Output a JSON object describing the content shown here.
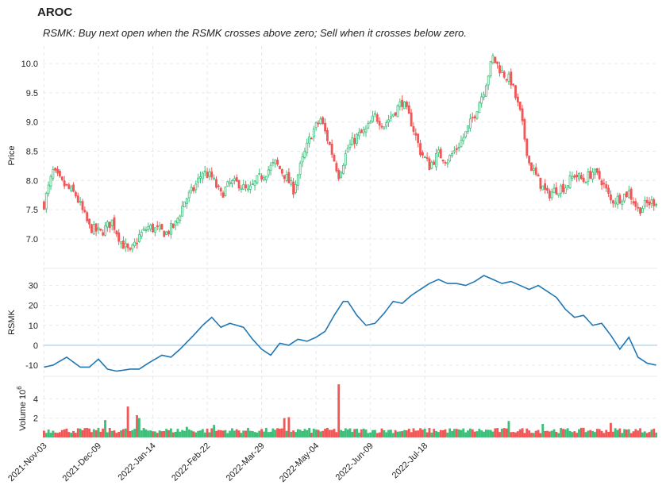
{
  "title": "AROC",
  "subtitle": "RSMK: Buy next open when the RSMK crosses above zero; Sell when it crosses below zero.",
  "colors": {
    "up": "#3dbf7a",
    "down": "#f25757",
    "rsmk": "#2077b4",
    "grid": "#e6e9ee",
    "zero": "#c9e1ee"
  },
  "chart_data": [
    {
      "type": "candlestick",
      "name": "price-panel",
      "ylabel": "Price",
      "ylim": [
        6.55,
        10.3
      ],
      "yticks": [
        7.0,
        7.5,
        8.0,
        8.5,
        9.0,
        9.5,
        10.0
      ],
      "anchors": [
        [
          0,
          7.6
        ],
        [
          4,
          8.15
        ],
        [
          8,
          7.95
        ],
        [
          14,
          7.75
        ],
        [
          20,
          7.2
        ],
        [
          25,
          7.1
        ],
        [
          30,
          7.3
        ],
        [
          34,
          6.95
        ],
        [
          38,
          6.75
        ],
        [
          42,
          7.05
        ],
        [
          46,
          7.2
        ],
        [
          50,
          7.15
        ],
        [
          54,
          7.1
        ],
        [
          58,
          7.25
        ],
        [
          62,
          7.65
        ],
        [
          66,
          7.85
        ],
        [
          70,
          8.15
        ],
        [
          74,
          8.05
        ],
        [
          78,
          7.75
        ],
        [
          82,
          7.95
        ],
        [
          86,
          7.95
        ],
        [
          90,
          7.8
        ],
        [
          94,
          8.0
        ],
        [
          98,
          8.15
        ],
        [
          102,
          8.3
        ],
        [
          106,
          8.1
        ],
        [
          110,
          7.85
        ],
        [
          114,
          8.35
        ],
        [
          118,
          8.8
        ],
        [
          122,
          9.05
        ],
        [
          126,
          8.6
        ],
        [
          130,
          8.1
        ],
        [
          134,
          8.55
        ],
        [
          138,
          8.75
        ],
        [
          142,
          8.85
        ],
        [
          146,
          9.1
        ],
        [
          150,
          8.95
        ],
        [
          154,
          9.15
        ],
        [
          158,
          9.35
        ],
        [
          162,
          9.0
        ],
        [
          166,
          8.5
        ],
        [
          170,
          8.25
        ],
        [
          174,
          8.45
        ],
        [
          178,
          8.35
        ],
        [
          182,
          8.55
        ],
        [
          186,
          8.8
        ],
        [
          190,
          9.15
        ],
        [
          194,
          9.55
        ],
        [
          198,
          10.1
        ],
        [
          202,
          9.85
        ],
        [
          206,
          9.7
        ],
        [
          210,
          9.15
        ],
        [
          214,
          8.3
        ],
        [
          218,
          8.0
        ],
        [
          222,
          7.75
        ],
        [
          226,
          7.85
        ],
        [
          230,
          7.9
        ],
        [
          234,
          8.1
        ],
        [
          238,
          8.0
        ],
        [
          242,
          8.15
        ],
        [
          246,
          8.0
        ],
        [
          250,
          7.65
        ],
        [
          254,
          7.7
        ],
        [
          258,
          7.8
        ],
        [
          262,
          7.5
        ],
        [
          266,
          7.6
        ],
        [
          270,
          7.65
        ]
      ],
      "dates": [
        "2021-Nov-03",
        "2021-Dec-09",
        "2022-Jan-14",
        "2022-Feb-22",
        "2022-Mar-29",
        "2022-May-04",
        "2022-Jun-09",
        "2022-Jul-18"
      ],
      "date_index": [
        0,
        24,
        48,
        72,
        96,
        120,
        144,
        168
      ],
      "n_bars": 271
    },
    {
      "type": "line",
      "name": "rsmk-panel",
      "ylabel": "RSMK",
      "ylim": [
        -14,
        37
      ],
      "yticks": [
        -10,
        0,
        10,
        20,
        30
      ],
      "anchors": [
        [
          0,
          -11
        ],
        [
          4,
          -10
        ],
        [
          10,
          -6
        ],
        [
          16,
          -11
        ],
        [
          20,
          -11
        ],
        [
          24,
          -7
        ],
        [
          28,
          -12
        ],
        [
          32,
          -13
        ],
        [
          38,
          -12
        ],
        [
          42,
          -12
        ],
        [
          46,
          -9
        ],
        [
          52,
          -5
        ],
        [
          56,
          -6
        ],
        [
          60,
          -2
        ],
        [
          66,
          5
        ],
        [
          70,
          10
        ],
        [
          74,
          14
        ],
        [
          78,
          9
        ],
        [
          82,
          11
        ],
        [
          88,
          9
        ],
        [
          92,
          3
        ],
        [
          96,
          -2
        ],
        [
          100,
          -5
        ],
        [
          104,
          1
        ],
        [
          108,
          0
        ],
        [
          112,
          3
        ],
        [
          116,
          2
        ],
        [
          120,
          4
        ],
        [
          124,
          7
        ],
        [
          128,
          15
        ],
        [
          132,
          22
        ],
        [
          134,
          22
        ],
        [
          138,
          15
        ],
        [
          142,
          10
        ],
        [
          146,
          11
        ],
        [
          150,
          16
        ],
        [
          154,
          22
        ],
        [
          158,
          21
        ],
        [
          162,
          25
        ],
        [
          166,
          28
        ],
        [
          170,
          31
        ],
        [
          174,
          33
        ],
        [
          178,
          31
        ],
        [
          182,
          31
        ],
        [
          186,
          30
        ],
        [
          190,
          32
        ],
        [
          194,
          35
        ],
        [
          198,
          33
        ],
        [
          202,
          31
        ],
        [
          206,
          32
        ],
        [
          210,
          30
        ],
        [
          214,
          28
        ],
        [
          218,
          30
        ],
        [
          222,
          27
        ],
        [
          226,
          24
        ],
        [
          230,
          18
        ],
        [
          234,
          14
        ],
        [
          238,
          15
        ],
        [
          242,
          10
        ],
        [
          246,
          11
        ],
        [
          250,
          5
        ],
        [
          254,
          -2
        ],
        [
          258,
          4
        ],
        [
          262,
          -6
        ],
        [
          266,
          -9
        ],
        [
          270,
          -10
        ]
      ]
    },
    {
      "type": "bar",
      "name": "volume-panel",
      "ylabel": "Volume  10^6",
      "ylim": [
        0,
        6.0
      ],
      "yticks": [
        2,
        4
      ],
      "spikes": [
        [
          27,
          1.8
        ],
        [
          37,
          3.2
        ],
        [
          41,
          2.3
        ],
        [
          42,
          2.0
        ],
        [
          63,
          1.1
        ],
        [
          75,
          1.3
        ],
        [
          106,
          2.0
        ],
        [
          108,
          2.1
        ],
        [
          130,
          5.5
        ],
        [
          205,
          1.7
        ],
        [
          220,
          1.4
        ],
        [
          250,
          1.5
        ]
      ]
    }
  ]
}
